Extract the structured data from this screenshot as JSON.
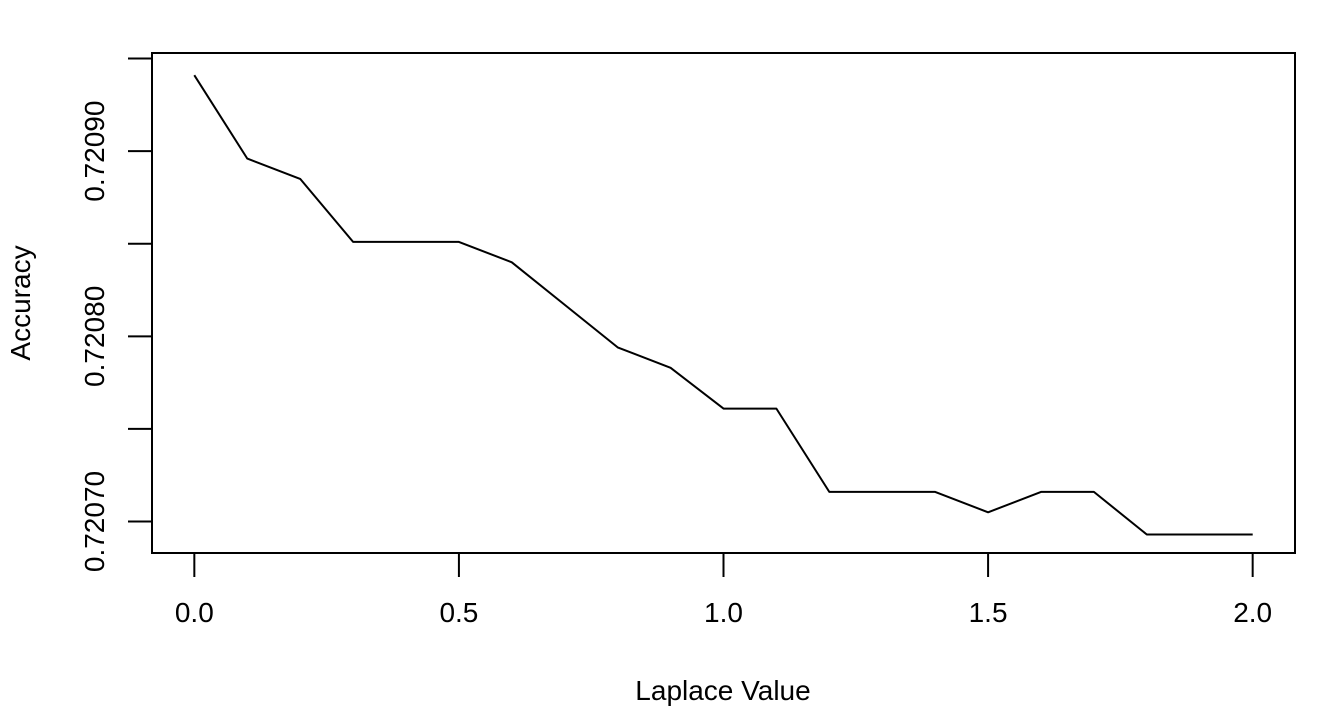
{
  "chart_data": {
    "type": "line",
    "title": "",
    "xlabel": "Laplace Value",
    "ylabel": "Accuracy",
    "xlim": [
      -0.08,
      2.08
    ],
    "ylim": [
      0.720683,
      0.720953
    ],
    "x_ticks": [
      {
        "value": 0.0,
        "label": "0.0"
      },
      {
        "value": 0.5,
        "label": "0.5"
      },
      {
        "value": 1.0,
        "label": "1.0"
      },
      {
        "value": 1.5,
        "label": "1.5"
      },
      {
        "value": 2.0,
        "label": "2.0"
      }
    ],
    "y_ticks": [
      {
        "value": 0.7207,
        "label": "0.72070"
      },
      {
        "value": 0.72075,
        "label": ""
      },
      {
        "value": 0.7208,
        "label": "0.72080"
      },
      {
        "value": 0.72085,
        "label": ""
      },
      {
        "value": 0.7209,
        "label": "0.72090"
      },
      {
        "value": 0.72095,
        "label": ""
      }
    ],
    "grid": false,
    "line_color": "#000000",
    "series": [
      {
        "x": [
          0.0,
          0.1,
          0.2,
          0.3,
          0.4,
          0.5,
          0.6,
          0.7,
          0.8,
          0.9,
          1.0,
          1.1,
          1.2,
          1.3,
          1.4,
          1.5,
          1.6,
          1.7,
          1.8,
          1.9,
          2.0
        ],
        "values": [
          0.720941,
          0.720896,
          0.720885,
          0.720851,
          0.720851,
          0.720851,
          0.72084,
          0.720817,
          0.720794,
          0.720783,
          0.720761,
          0.720761,
          0.720716,
          0.720716,
          0.720716,
          0.720705,
          0.720716,
          0.720716,
          0.720693,
          0.720693,
          0.720693
        ]
      }
    ]
  }
}
